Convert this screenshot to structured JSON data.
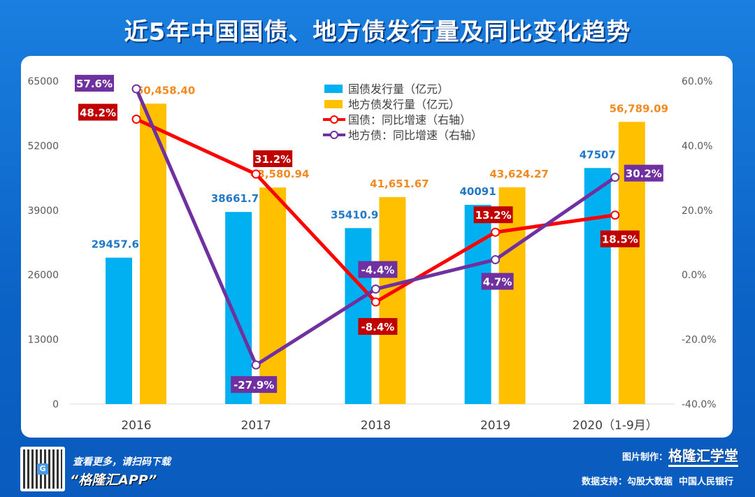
{
  "title": "近5年中国国债、地方债发行量及同比变化趋势",
  "chart_data": {
    "type": "bar+line",
    "categories": [
      "2016",
      "2017",
      "2018",
      "2019",
      "2020（1-9月）"
    ],
    "left_axis": {
      "ylim": [
        0,
        65000
      ],
      "ticks": [
        "0",
        "13000",
        "26000",
        "39000",
        "52000",
        "65000"
      ]
    },
    "right_axis": {
      "ylim": [
        -40,
        60
      ],
      "ticks": [
        "-40.0%",
        "-20.0%",
        "0.0%",
        "20.0%",
        "40.0%",
        "60.0%"
      ]
    },
    "grid": false,
    "legend_position": "top-center",
    "series": [
      {
        "name": "国债发行量（亿元）",
        "type": "bar",
        "axis": "left",
        "color": "#00b0f0",
        "values": [
          29457.69,
          38661.79,
          35410.97,
          40091,
          47507
        ],
        "labels": [
          "29457.69",
          "38661.79",
          "35410.97",
          "40091",
          "47507"
        ]
      },
      {
        "name": "地方债发行量（亿元）",
        "type": "bar",
        "axis": "left",
        "color": "#ffc000",
        "values": [
          60458.4,
          43580.94,
          41651.67,
          43624.27,
          56789.09
        ],
        "labels": [
          "60,458.40",
          "43,580.94",
          "41,651.67",
          "43,624.27",
          "56,789.09"
        ]
      },
      {
        "name": "国债：同比增速（右轴）",
        "type": "line",
        "axis": "right",
        "color": "#ff0000",
        "values": [
          48.2,
          31.2,
          -8.4,
          13.2,
          18.5
        ],
        "labels": [
          "48.2%",
          "31.2%",
          "-8.4%",
          "13.2%",
          "18.5%"
        ]
      },
      {
        "name": "地方债：同比增速（右轴）",
        "type": "line",
        "axis": "right",
        "color": "#7030a0",
        "values": [
          57.6,
          -27.9,
          -4.4,
          4.7,
          30.2
        ],
        "labels": [
          "57.6%",
          "-27.9%",
          "-4.4%",
          "4.7%",
          "30.2%"
        ]
      }
    ]
  },
  "footer": {
    "qr_badge": "G",
    "promo_line1": "查看更多，请扫码下载",
    "promo_line2": "“格隆汇APP”",
    "made_by_label": "图片制作：",
    "made_by_brand": "格隆汇学堂",
    "source": "数据支持：勾股大数据  中国人民银行"
  }
}
